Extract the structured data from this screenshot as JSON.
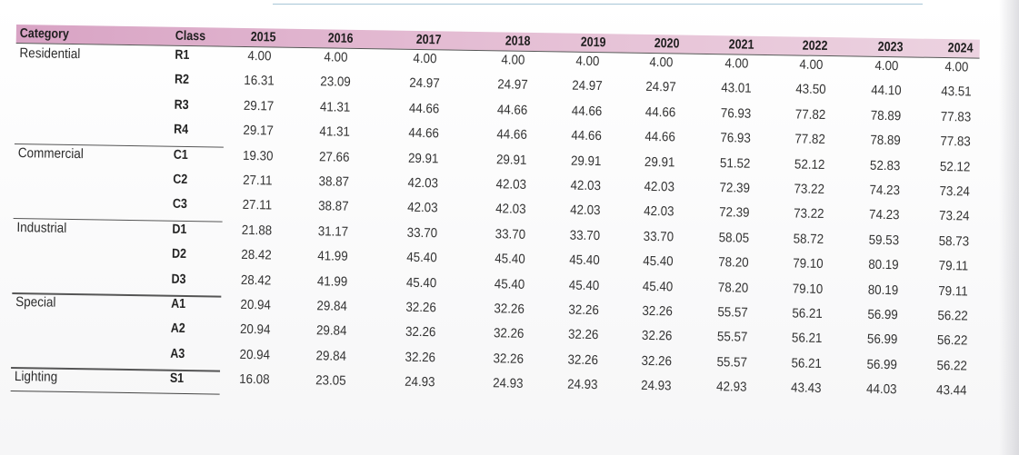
{
  "table": {
    "headers": [
      "Category",
      "Class",
      "2015",
      "2016",
      "2017",
      "2018",
      "2019",
      "2020",
      "2021",
      "2022",
      "2023",
      "2024"
    ],
    "rows": [
      {
        "category": "Residential",
        "class": "R1",
        "values": [
          "4.00",
          "4.00",
          "4.00",
          "4.00",
          "4.00",
          "4.00",
          "4.00",
          "4.00",
          "4.00",
          "4.00"
        ]
      },
      {
        "category": "",
        "class": "R2",
        "values": [
          "16.31",
          "23.09",
          "24.97",
          "24.97",
          "24.97",
          "24.97",
          "43.01",
          "43.50",
          "44.10",
          "43.51"
        ]
      },
      {
        "category": "",
        "class": "R3",
        "values": [
          "29.17",
          "41.31",
          "44.66",
          "44.66",
          "44.66",
          "44.66",
          "76.93",
          "77.82",
          "78.89",
          "77.83"
        ]
      },
      {
        "category": "",
        "class": "R4",
        "values": [
          "29.17",
          "41.31",
          "44.66",
          "44.66",
          "44.66",
          "44.66",
          "76.93",
          "77.82",
          "78.89",
          "77.83"
        ]
      },
      {
        "category": "Commercial",
        "class": "C1",
        "values": [
          "19.30",
          "27.66",
          "29.91",
          "29.91",
          "29.91",
          "29.91",
          "51.52",
          "52.12",
          "52.83",
          "52.12"
        ]
      },
      {
        "category": "",
        "class": "C2",
        "values": [
          "27.11",
          "38.87",
          "42.03",
          "42.03",
          "42.03",
          "42.03",
          "72.39",
          "73.22",
          "74.23",
          "73.24"
        ]
      },
      {
        "category": "",
        "class": "C3",
        "values": [
          "27.11",
          "38.87",
          "42.03",
          "42.03",
          "42.03",
          "42.03",
          "72.39",
          "73.22",
          "74.23",
          "73.24"
        ]
      },
      {
        "category": "Industrial",
        "class": "D1",
        "values": [
          "21.88",
          "31.17",
          "33.70",
          "33.70",
          "33.70",
          "33.70",
          "58.05",
          "58.72",
          "59.53",
          "58.73"
        ]
      },
      {
        "category": "",
        "class": "D2",
        "values": [
          "28.42",
          "41.99",
          "45.40",
          "45.40",
          "45.40",
          "45.40",
          "78.20",
          "79.10",
          "80.19",
          "79.11"
        ]
      },
      {
        "category": "",
        "class": "D3",
        "values": [
          "28.42",
          "41.99",
          "45.40",
          "45.40",
          "45.40",
          "45.40",
          "78.20",
          "79.10",
          "80.19",
          "79.11"
        ]
      },
      {
        "category": "Special",
        "class": "A1",
        "values": [
          "20.94",
          "29.84",
          "32.26",
          "32.26",
          "32.26",
          "32.26",
          "55.57",
          "56.21",
          "56.99",
          "56.22"
        ]
      },
      {
        "category": "",
        "class": "A2",
        "values": [
          "20.94",
          "29.84",
          "32.26",
          "32.26",
          "32.26",
          "32.26",
          "55.57",
          "56.21",
          "56.99",
          "56.22"
        ]
      },
      {
        "category": "",
        "class": "A3",
        "values": [
          "20.94",
          "29.84",
          "32.26",
          "32.26",
          "32.26",
          "32.26",
          "55.57",
          "56.21",
          "56.99",
          "56.22"
        ]
      },
      {
        "category": "Lighting",
        "class": "S1",
        "values": [
          "16.08",
          "23.05",
          "24.93",
          "24.93",
          "24.93",
          "24.93",
          "42.93",
          "43.43",
          "44.03",
          "43.44"
        ]
      }
    ]
  }
}
